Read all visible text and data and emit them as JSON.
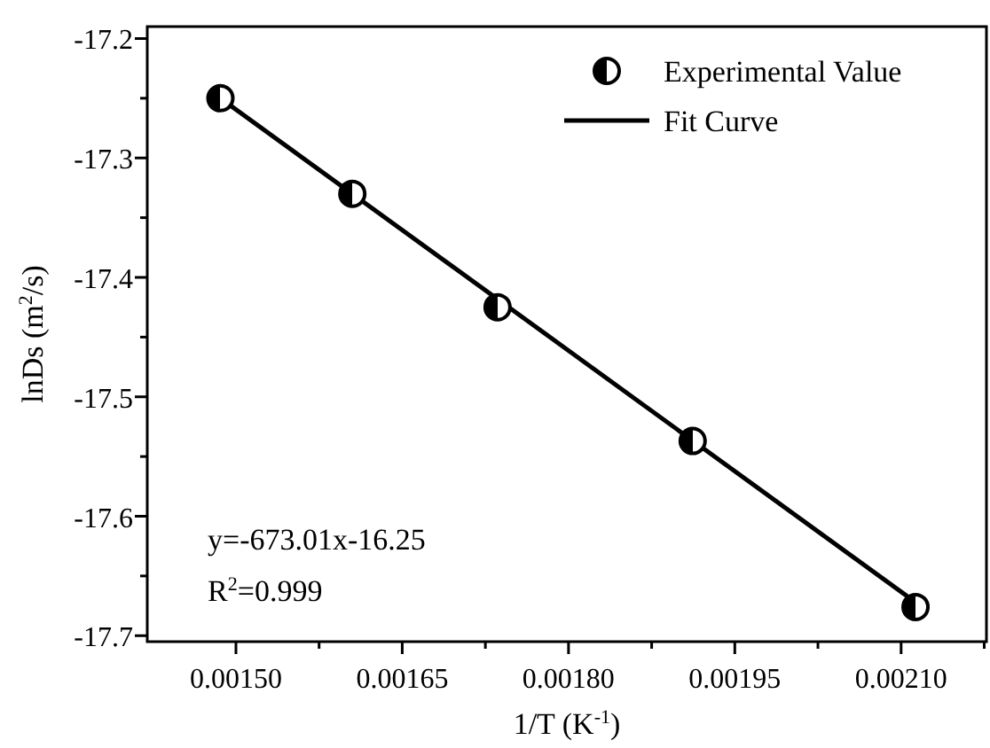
{
  "chart_data": {
    "type": "scatter",
    "xlabel": "1/T (K$^{-1}$)",
    "ylabel": "lnDs (m$^{2}$/s)",
    "xlim": [
      0.00142,
      0.002177
    ],
    "ylim": [
      -17.705,
      -17.19
    ],
    "xticks": [
      {
        "value": 0.0015,
        "label": "0.00150"
      },
      {
        "value": 0.001575,
        "label": null
      },
      {
        "value": 0.00165,
        "label": "0.00165"
      },
      {
        "value": 0.001725,
        "label": null
      },
      {
        "value": 0.0018,
        "label": "0.00180"
      },
      {
        "value": 0.001875,
        "label": null
      },
      {
        "value": 0.00195,
        "label": "0.00195"
      },
      {
        "value": 0.002025,
        "label": null
      },
      {
        "value": 0.0021,
        "label": "0.00210"
      },
      {
        "value": 0.002175,
        "label": null
      }
    ],
    "yticks": [
      {
        "value": -17.2,
        "label": "-17.2"
      },
      {
        "value": -17.25,
        "label": null
      },
      {
        "value": -17.3,
        "label": "-17.3"
      },
      {
        "value": -17.35,
        "label": null
      },
      {
        "value": -17.4,
        "label": "-17.4"
      },
      {
        "value": -17.45,
        "label": null
      },
      {
        "value": -17.5,
        "label": "-17.5"
      },
      {
        "value": -17.55,
        "label": null
      },
      {
        "value": -17.6,
        "label": "-17.6"
      },
      {
        "value": -17.65,
        "label": null
      },
      {
        "value": -17.7,
        "label": "-17.7"
      }
    ],
    "grid": false,
    "legend": "top right",
    "series": [
      {
        "name": "Experimental Value",
        "marker": "circle",
        "color": "#000000",
        "x": [
          0.001486,
          0.001605,
          0.001736,
          0.001912,
          0.002113
        ],
        "values": [
          -17.25,
          -17.33,
          -17.425,
          -17.537,
          -17.676
        ]
      },
      {
        "name": "Fit Curve",
        "type": "line",
        "marker": "none",
        "color": "#000000",
        "line_style": "solid",
        "x": [
          0.001486,
          0.002113
        ],
        "values": [
          -17.25,
          -17.672
        ]
      }
    ],
    "annotations": [
      "y=-673.01x-16.25",
      "R$^{2}$=0.999"
    ]
  }
}
